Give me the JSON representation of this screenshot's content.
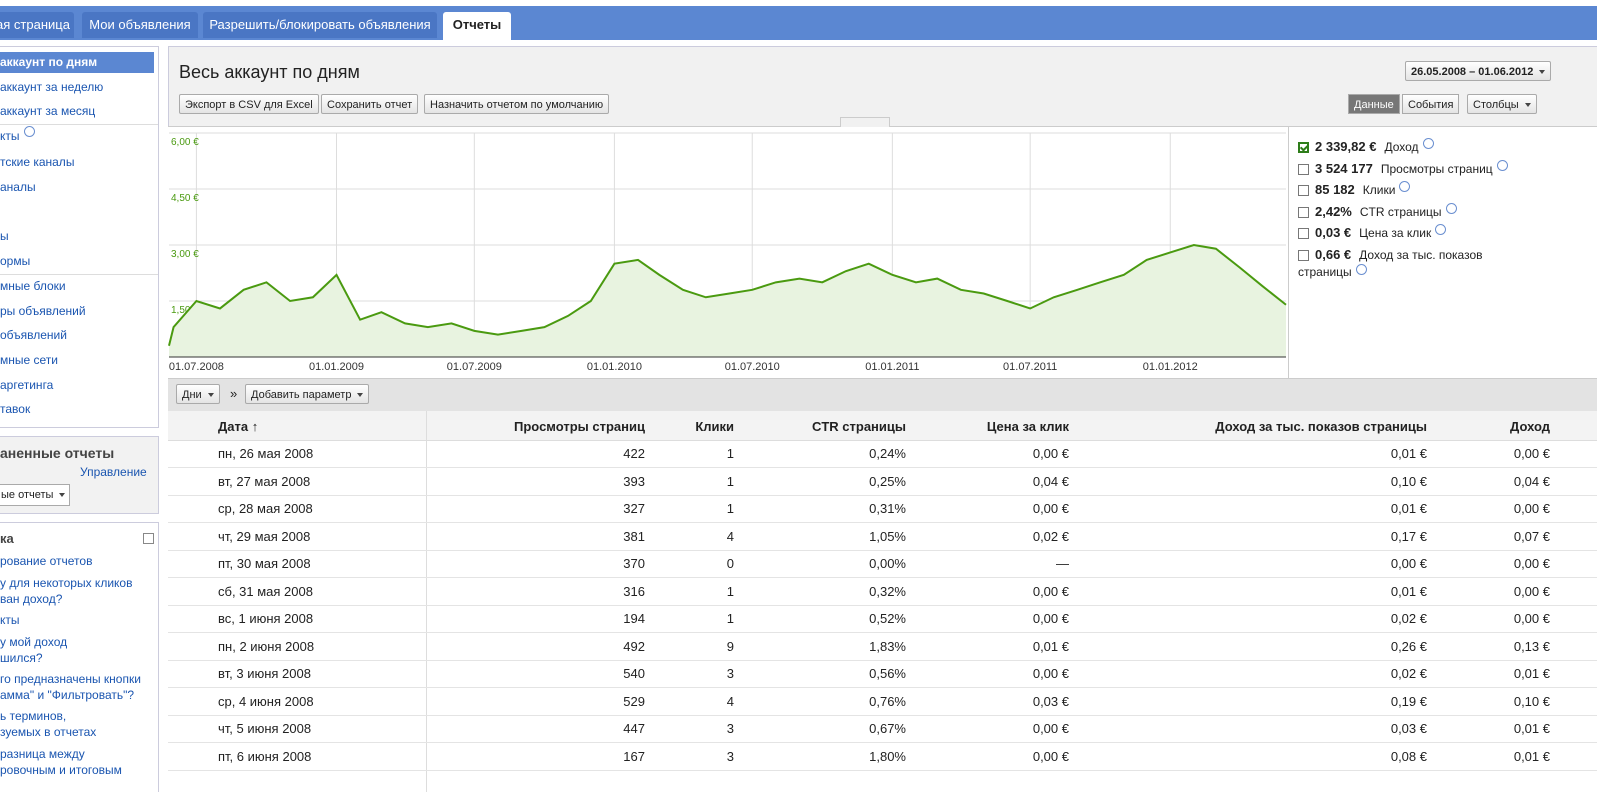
{
  "tabs": [
    "ая страница",
    "Мои объявления",
    "Разрешить/блокировать объявления",
    "Отчеты"
  ],
  "active_tab": 3,
  "sidebar": {
    "nav": [
      "аккаунт по дням",
      "аккаунт за неделю",
      "аккаунт за месяц",
      "кты",
      "тские каналы",
      "аналы",
      "ы",
      "ормы",
      "мные блоки",
      "ры объявлений",
      "объявлений",
      "мные сети",
      "аргетинга",
      "тавок"
    ],
    "active_nav": 0,
    "saved_reports": {
      "title": "аненные отчеты",
      "manage": "Управление",
      "dropdown": "ые отчеты"
    },
    "help": {
      "title": "ка",
      "links": [
        [
          "рование отчетов"
        ],
        [
          "у для некоторых кликов",
          "ван доход?"
        ],
        [
          "кты"
        ],
        [
          "у мой доход",
          "шился?"
        ],
        [
          "го предназначены кнопки",
          "амма\" и \"Фильтровать\"?"
        ],
        [
          "ь терминов,",
          "зуемых в отчетах"
        ],
        [
          "разница между",
          "ровочным и итоговым"
        ]
      ]
    }
  },
  "report": {
    "title": "Весь аккаунт по дням",
    "buttons": [
      "Экспорт в CSV для Excel",
      "Сохранить отчет",
      "Назначить отчетом по умолчанию"
    ],
    "date_range": "26.05.2008 – 01.06.2012",
    "view_toggle": [
      "Данные",
      "События"
    ],
    "active_view": 0,
    "columns_button": "Столбцы"
  },
  "chart_data": {
    "type": "line",
    "color": "#4a9a10",
    "area_color": "#e8f3e0",
    "x": [
      "26.05.2008",
      "01.06.2008",
      "01.07.2008",
      "01.08.2008",
      "01.09.2008",
      "01.10.2008",
      "01.11.2008",
      "01.12.2008",
      "01.01.2009",
      "01.02.2009",
      "01.03.2009",
      "01.04.2009",
      "01.05.2009",
      "01.06.2009",
      "01.07.2009",
      "01.08.2009",
      "01.09.2009",
      "01.10.2009",
      "01.11.2009",
      "01.12.2009",
      "01.01.2010",
      "01.02.2010",
      "01.03.2010",
      "01.04.2010",
      "01.05.2010",
      "01.06.2010",
      "01.07.2010",
      "01.08.2010",
      "01.09.2010",
      "01.10.2010",
      "01.11.2010",
      "01.12.2010",
      "01.01.2011",
      "01.02.2011",
      "01.03.2011",
      "01.04.2011",
      "01.05.2011",
      "01.06.2011",
      "01.07.2011",
      "01.08.2011",
      "01.09.2011",
      "01.10.2011",
      "01.11.2011",
      "01.12.2011",
      "01.01.2012",
      "01.02.2012",
      "01.03.2012",
      "01.04.2012",
      "01.05.2012",
      "01.06.2012"
    ],
    "values": [
      0.3,
      0.8,
      1.5,
      1.3,
      1.8,
      2.0,
      1.5,
      1.6,
      2.2,
      1.0,
      1.2,
      0.9,
      0.8,
      0.9,
      0.7,
      0.6,
      0.7,
      0.8,
      1.1,
      1.5,
      2.5,
      2.6,
      2.2,
      1.8,
      1.6,
      1.7,
      1.8,
      2.0,
      2.1,
      2.0,
      2.3,
      2.5,
      2.2,
      2.0,
      2.1,
      1.8,
      1.7,
      1.5,
      1.3,
      1.6,
      1.8,
      2.0,
      2.2,
      2.6,
      2.8,
      3.0,
      2.9,
      2.4,
      1.9,
      1.4
    ],
    "xlim": [
      "26.05.2008",
      "01.06.2012"
    ],
    "xticks": [
      "01.07.2008",
      "01.01.2009",
      "01.07.2009",
      "01.01.2010",
      "01.07.2010",
      "01.01.2011",
      "01.07.2011",
      "01.01.2012"
    ],
    "ylim": [
      0,
      6
    ],
    "yticks": [
      {
        "value": 1.5,
        "label": "1,50 €"
      },
      {
        "value": 3,
        "label": "3,00 €"
      },
      {
        "value": 4.5,
        "label": "4,50 €"
      },
      {
        "value": 6,
        "label": "6,00 €"
      }
    ],
    "grid": true
  },
  "metrics": [
    {
      "value": "2 339,82 €",
      "label": "Доход",
      "checked": true
    },
    {
      "value": "3 524 177",
      "label": "Просмотры страниц",
      "checked": false
    },
    {
      "value": "85 182",
      "label": "Клики",
      "checked": false
    },
    {
      "value": "2,42%",
      "label": "CTR страницы",
      "checked": false
    },
    {
      "value": "0,03 €",
      "label": "Цена за клик",
      "checked": false
    },
    {
      "value": "0,66 €",
      "label": "Доход за тыс. показов страницы",
      "checked": false
    }
  ],
  "toolbar": {
    "period": "Дни",
    "separator": "»",
    "add": "Добавить параметр"
  },
  "table": {
    "columns": [
      "Дата ↑",
      "Просмотры страниц",
      "Клики",
      "CTR страницы",
      "Цена за клик",
      "Доход за тыс. показов страницы",
      "Доход"
    ],
    "rows": [
      [
        "пн, 26 мая 2008",
        "422",
        "1",
        "0,24%",
        "0,00 €",
        "0,01 €",
        "0,00 €"
      ],
      [
        "вт, 27 мая 2008",
        "393",
        "1",
        "0,25%",
        "0,04 €",
        "0,10 €",
        "0,04 €"
      ],
      [
        "ср, 28 мая 2008",
        "327",
        "1",
        "0,31%",
        "0,00 €",
        "0,01 €",
        "0,00 €"
      ],
      [
        "чт, 29 мая 2008",
        "381",
        "4",
        "1,05%",
        "0,02 €",
        "0,17 €",
        "0,07 €"
      ],
      [
        "пт, 30 мая 2008",
        "370",
        "0",
        "0,00%",
        "—",
        "0,00 €",
        "0,00 €"
      ],
      [
        "сб, 31 мая 2008",
        "316",
        "1",
        "0,32%",
        "0,00 €",
        "0,01 €",
        "0,00 €"
      ],
      [
        "вс, 1 июня 2008",
        "194",
        "1",
        "0,52%",
        "0,00 €",
        "0,02 €",
        "0,00 €"
      ],
      [
        "пн, 2 июня 2008",
        "492",
        "9",
        "1,83%",
        "0,01 €",
        "0,26 €",
        "0,13 €"
      ],
      [
        "вт, 3 июня 2008",
        "540",
        "3",
        "0,56%",
        "0,00 €",
        "0,02 €",
        "0,01 €"
      ],
      [
        "ср, 4 июня 2008",
        "529",
        "4",
        "0,76%",
        "0,03 €",
        "0,19 €",
        "0,10 €"
      ],
      [
        "чт, 5 июня 2008",
        "447",
        "3",
        "0,67%",
        "0,00 €",
        "0,03 €",
        "0,01 €"
      ],
      [
        "пт, 6 июня 2008",
        "167",
        "3",
        "1,80%",
        "0,00 €",
        "0,08 €",
        "0,01 €"
      ]
    ]
  }
}
